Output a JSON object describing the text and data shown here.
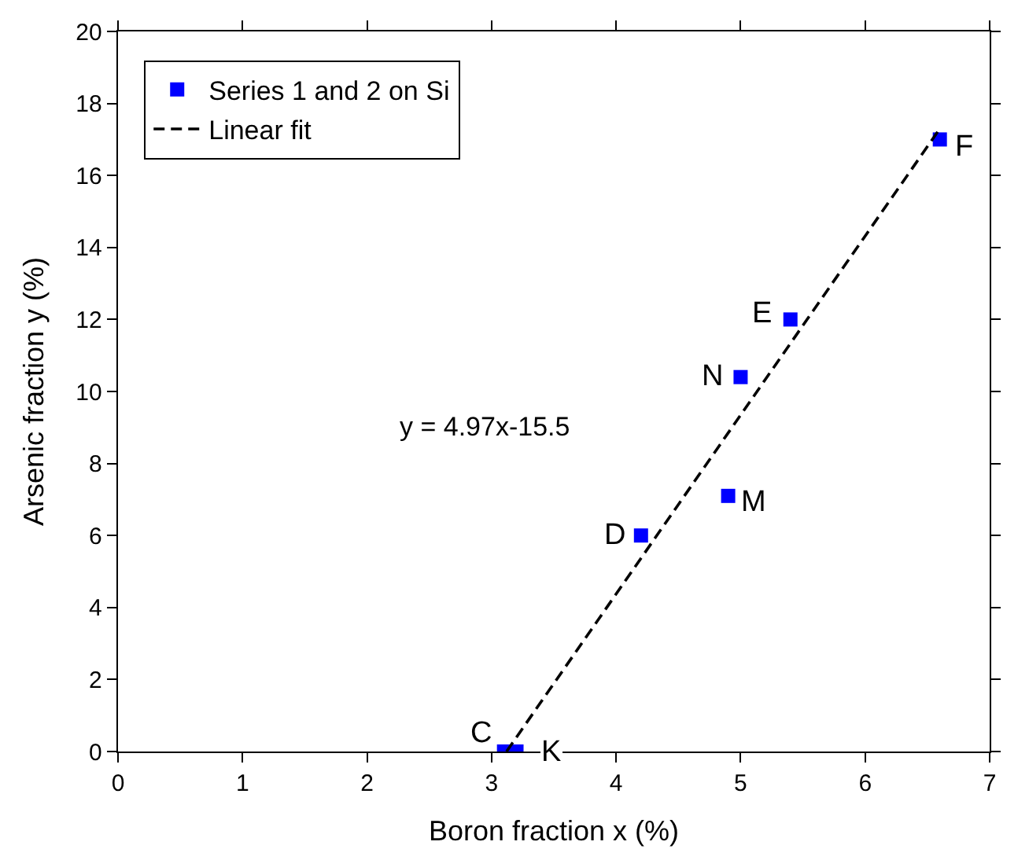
{
  "chart_data": {
    "type": "scatter",
    "xlabel": "Boron fraction x (%)",
    "ylabel": "Arsenic fraction y (%)",
    "xlim": [
      0,
      7
    ],
    "xticks": [
      0,
      1,
      2,
      3,
      4,
      5,
      6,
      7
    ],
    "ylim": [
      0,
      20
    ],
    "yticks": [
      0,
      2,
      4,
      6,
      8,
      10,
      12,
      14,
      16,
      18,
      20
    ],
    "grid": false,
    "legend": "top left",
    "marker": "square",
    "series": [
      {
        "name": "Series 1 and 2 on Si",
        "color": "#0000ff",
        "x": [
          3.1,
          3.2,
          4.2,
          4.9,
          5.0,
          5.4,
          6.6
        ],
        "values": [
          0,
          0,
          6,
          7.1,
          10.4,
          12,
          17
        ]
      },
      {
        "name": "Linear fit",
        "color": "#000000",
        "type": "line",
        "marker": "none",
        "line_style": "dashed",
        "x": [
          3.12,
          6.6
        ],
        "values": [
          0,
          17.3
        ]
      }
    ],
    "annotations": [
      {
        "text": "C",
        "x": 3.1,
        "y": 0
      },
      {
        "text": "K",
        "x": 3.2,
        "y": 0
      },
      {
        "text": "D",
        "x": 4.2,
        "y": 6
      },
      {
        "text": "M",
        "x": 4.9,
        "y": 7.1
      },
      {
        "text": "N",
        "x": 5.0,
        "y": 10.4
      },
      {
        "text": "E",
        "x": 5.4,
        "y": 12
      },
      {
        "text": "F",
        "x": 6.6,
        "y": 17
      },
      "y = 4.97x-15.5"
    ]
  }
}
